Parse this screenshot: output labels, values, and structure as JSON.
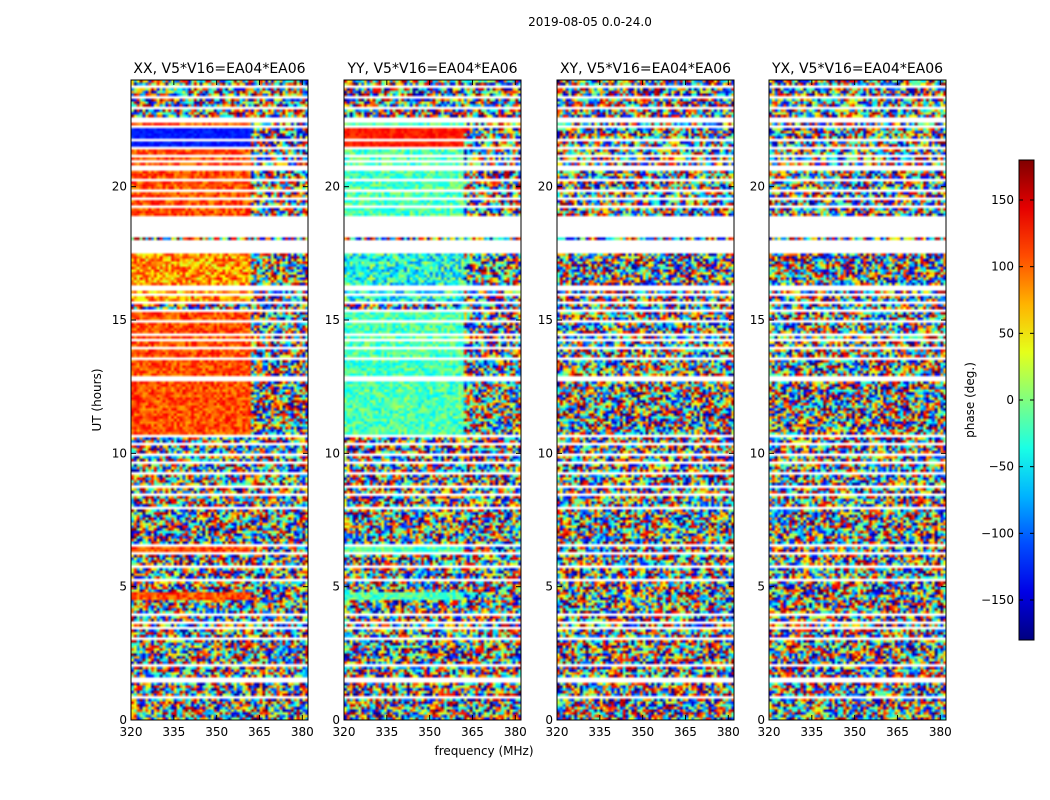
{
  "figure": {
    "suptitle": "2019-08-05 0.0-24.0"
  },
  "chart_data": {
    "type": "heatmap",
    "panels": [
      {
        "id": "xx",
        "title": "XX, V5*V16=EA04*EA06",
        "pattern": "xx"
      },
      {
        "id": "yy",
        "title": "YY, V5*V16=EA04*EA06",
        "pattern": "yy"
      },
      {
        "id": "xy",
        "title": "XY, V5*V16=EA04*EA06",
        "pattern": "noise"
      },
      {
        "id": "yx",
        "title": "YX, V5*V16=EA04*EA06",
        "pattern": "noise"
      }
    ],
    "xlabel": "frequency (MHz)",
    "ylabel": "UT (hours)",
    "xlim": [
      320,
      382
    ],
    "ylim": [
      0,
      24
    ],
    "xticks": [
      320,
      335,
      350,
      365,
      380
    ],
    "yticks": [
      0,
      5,
      10,
      15,
      20
    ],
    "xtick_labels": [
      "320",
      "335",
      "350",
      "365",
      "380"
    ],
    "ytick_labels": [
      "0",
      "5",
      "10",
      "15",
      "20"
    ],
    "colorbar": {
      "label": "phase (deg.)",
      "range": [
        -180,
        180
      ],
      "ticks": [
        150,
        100,
        50,
        0,
        -50,
        -100,
        -150
      ],
      "tick_labels": [
        "150",
        "100",
        "50",
        "0",
        "−50",
        "−100",
        "−150"
      ],
      "colormap": "jet"
    },
    "flagged_ut_gaps": [
      [
        0.0,
        0.05
      ],
      [
        0.45,
        0.5
      ],
      [
        0.85,
        0.9
      ],
      [
        1.4,
        1.47
      ],
      [
        1.55,
        1.62
      ],
      [
        2.05,
        2.1
      ],
      [
        2.5,
        2.55
      ],
      [
        3.05,
        3.1
      ],
      [
        3.4,
        3.46
      ],
      [
        3.6,
        3.66
      ],
      [
        3.9,
        3.95
      ],
      [
        4.15,
        4.22
      ],
      [
        4.45,
        4.52
      ],
      [
        4.8,
        4.85
      ],
      [
        5.2,
        5.25
      ],
      [
        5.7,
        5.75
      ],
      [
        6.2,
        6.25
      ],
      [
        6.5,
        6.58
      ],
      [
        7.0,
        7.05
      ],
      [
        7.9,
        8.0
      ],
      [
        8.4,
        8.45
      ],
      [
        8.75,
        8.8
      ],
      [
        9.2,
        9.25
      ],
      [
        9.6,
        9.65
      ],
      [
        9.95,
        10.0
      ],
      [
        10.3,
        10.35
      ],
      [
        10.6,
        10.7
      ],
      [
        12.75,
        12.9
      ],
      [
        13.5,
        13.56
      ],
      [
        13.9,
        13.95
      ],
      [
        14.2,
        14.25
      ],
      [
        14.45,
        14.5
      ],
      [
        14.9,
        14.95
      ],
      [
        15.35,
        15.42
      ],
      [
        15.65,
        15.7
      ],
      [
        15.95,
        16.0
      ],
      [
        16.15,
        16.25
      ],
      [
        17.55,
        18.0
      ],
      [
        18.15,
        18.85
      ],
      [
        19.25,
        19.32
      ],
      [
        19.55,
        19.62
      ],
      [
        19.85,
        19.92
      ],
      [
        20.25,
        20.32
      ],
      [
        20.65,
        20.75
      ],
      [
        20.9,
        20.95
      ],
      [
        21.15,
        21.22
      ],
      [
        21.45,
        21.52
      ],
      [
        21.75,
        21.8
      ],
      [
        22.25,
        22.3
      ],
      [
        22.45,
        22.58
      ],
      [
        22.95,
        23.0
      ],
      [
        23.3,
        23.35
      ],
      [
        23.7,
        23.75
      ]
    ],
    "coherent_ut_ranges": [
      [
        4.5,
        4.8,
        0
      ],
      [
        6.3,
        6.6,
        0
      ],
      [
        10.7,
        12.75,
        0
      ],
      [
        12.9,
        14.4,
        0
      ],
      [
        14.4,
        15.35,
        0
      ],
      [
        15.7,
        17.55,
        1
      ],
      [
        18.85,
        19.2,
        0
      ],
      [
        19.3,
        22.5,
        0
      ]
    ]
  }
}
